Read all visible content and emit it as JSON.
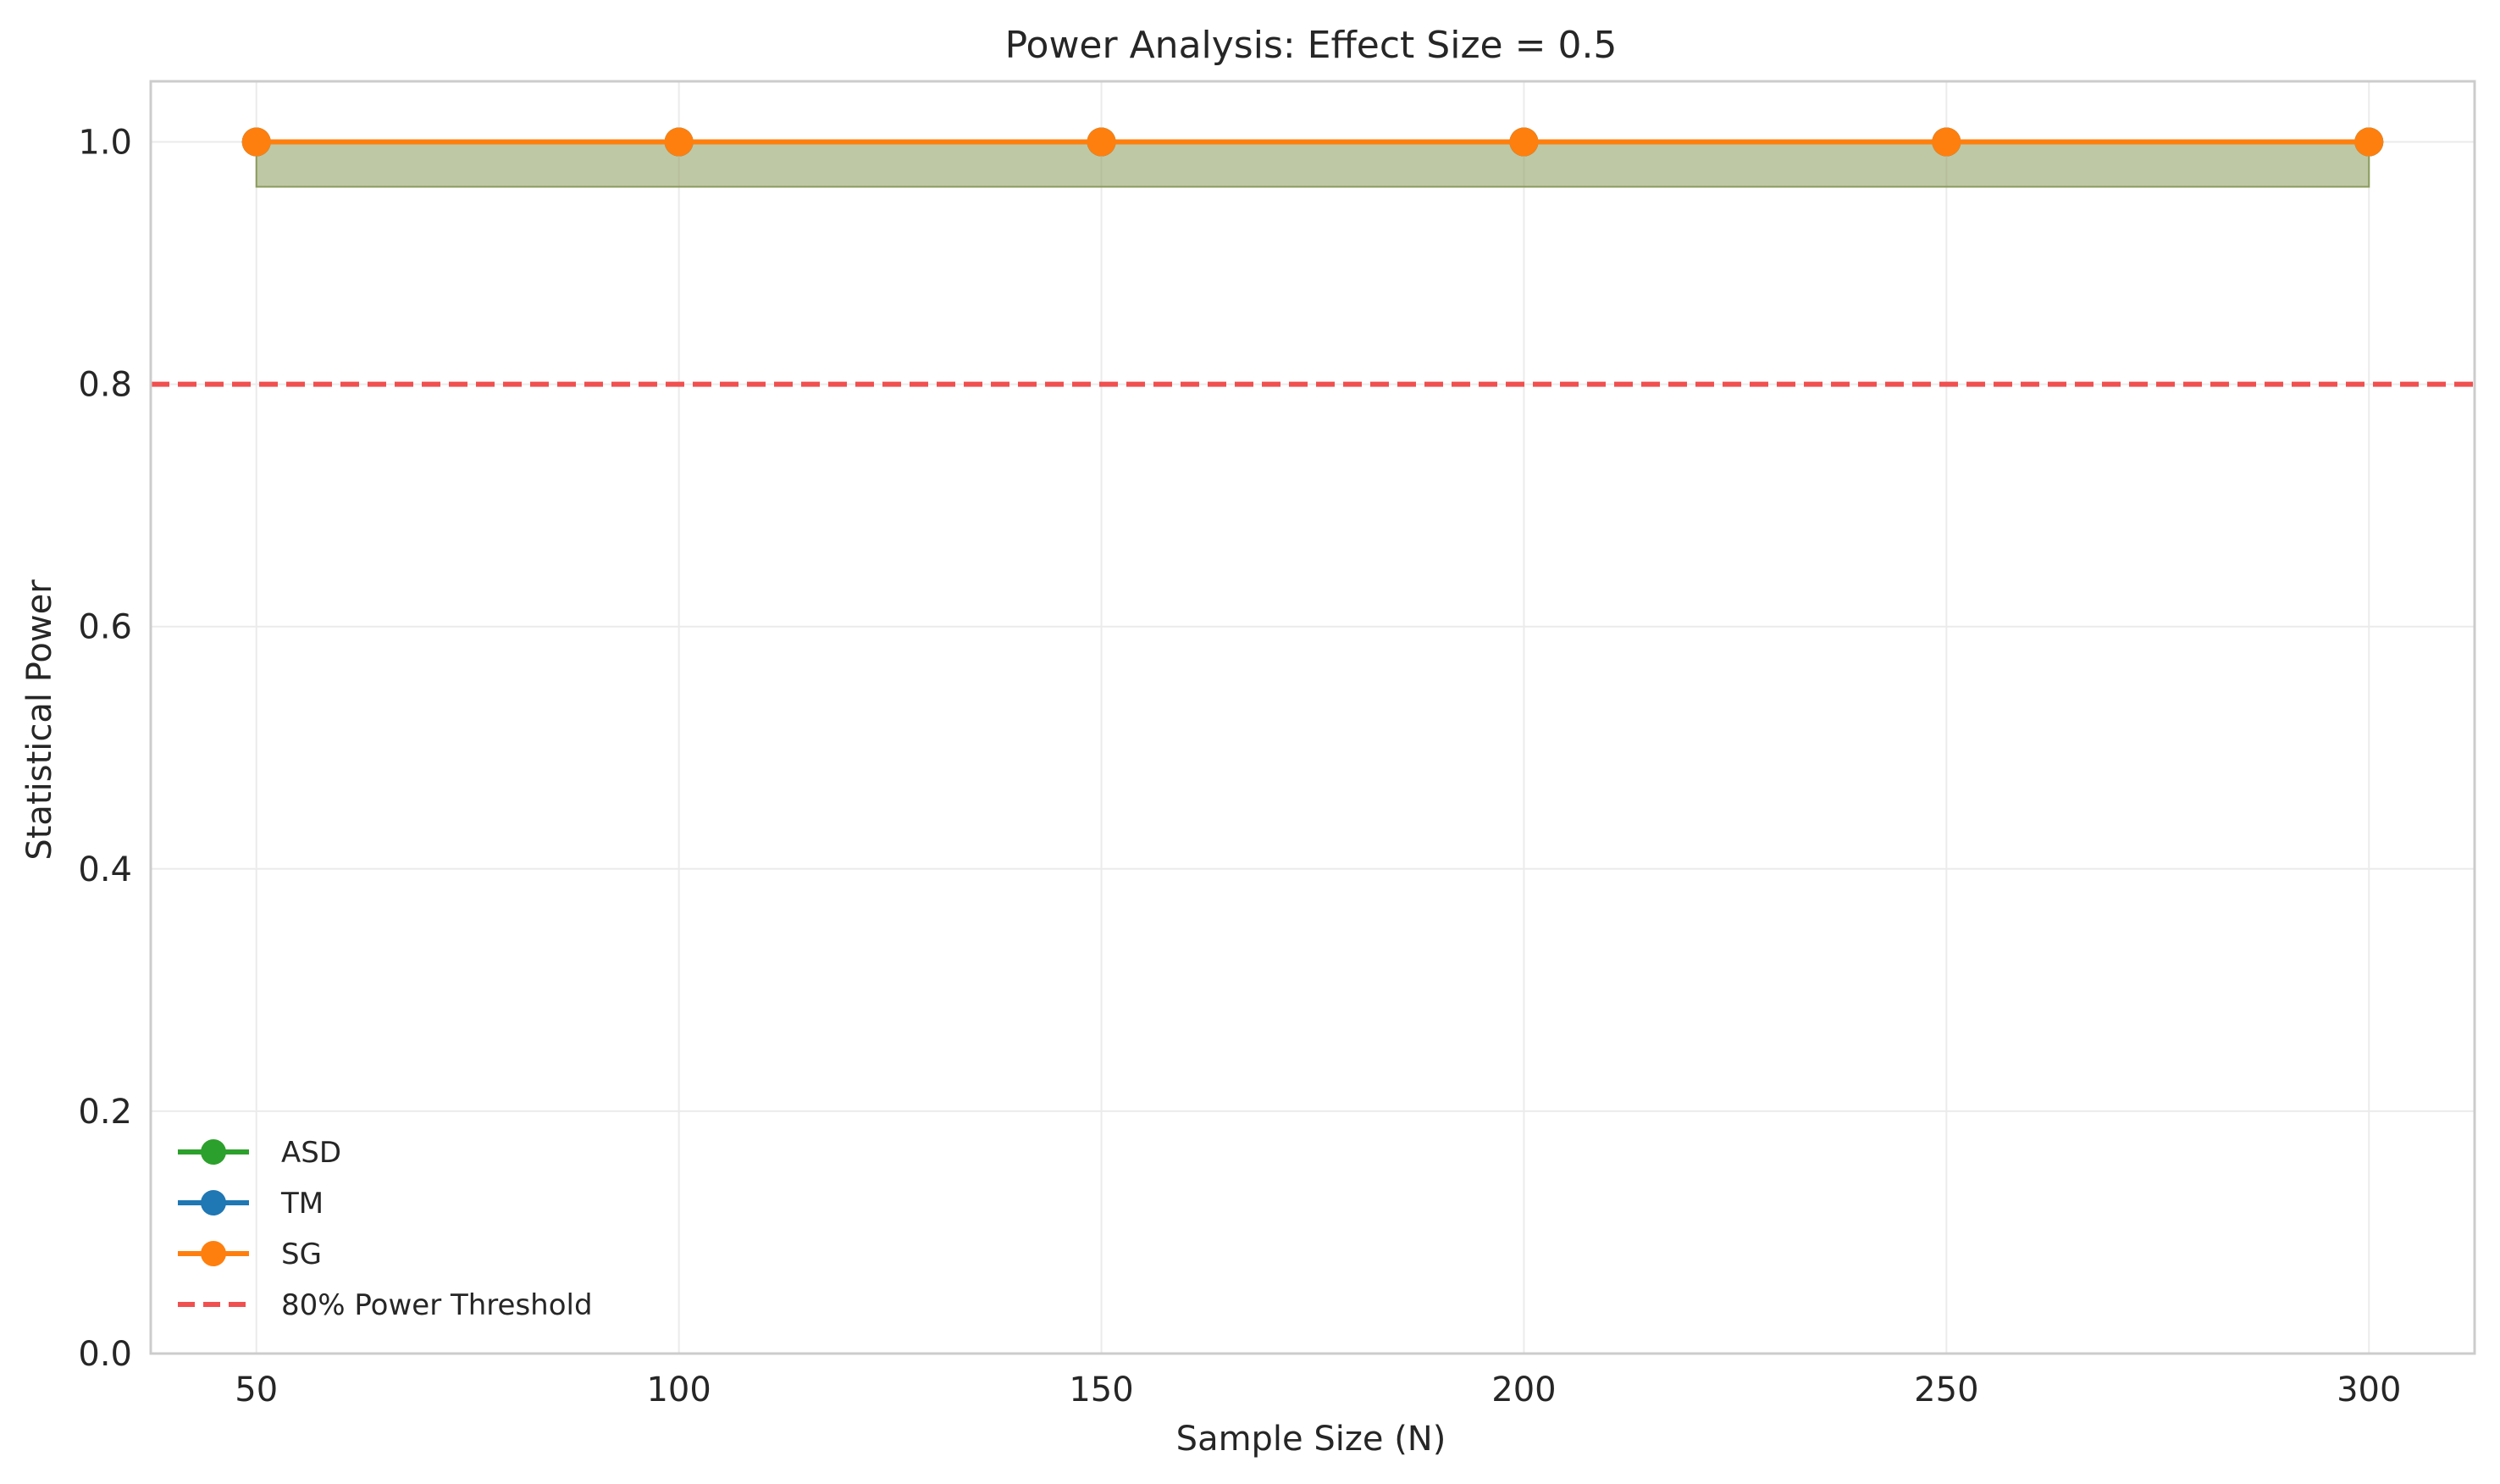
{
  "chart_data": {
    "type": "line",
    "title": "Power Analysis: Effect Size = 0.5",
    "xlabel": "Sample Size (N)",
    "ylabel": "Statistical Power",
    "xlim": [
      37.5,
      312.5
    ],
    "ylim": [
      0.0,
      1.05
    ],
    "x": [
      50,
      100,
      150,
      200,
      250,
      300
    ],
    "xticks": [
      50,
      100,
      150,
      200,
      250,
      300
    ],
    "yticks": [
      0.0,
      0.2,
      0.4,
      0.6,
      0.8,
      1.0
    ],
    "ytick_labels": [
      "0.0",
      "0.2",
      "0.4",
      "0.6",
      "0.8",
      "1.0"
    ],
    "grid": true,
    "legend_position": "lower-left",
    "series": [
      {
        "name": "ASD",
        "color": "#2ca02c",
        "values": [
          1.0,
          1.0,
          1.0,
          1.0,
          1.0,
          1.0
        ]
      },
      {
        "name": "TM",
        "color": "#1f77b4",
        "values": [
          1.0,
          1.0,
          1.0,
          1.0,
          1.0,
          1.0
        ]
      },
      {
        "name": "SG",
        "color": "#ff7f0e",
        "values": [
          1.0,
          1.0,
          1.0,
          1.0,
          1.0,
          1.0
        ]
      }
    ],
    "confidence_band": {
      "lower": 0.963,
      "upper": 1.0,
      "color": "#8a9a5b"
    },
    "threshold": {
      "name": "80% Power Threshold",
      "value": 0.8,
      "color": "#f05050"
    }
  }
}
